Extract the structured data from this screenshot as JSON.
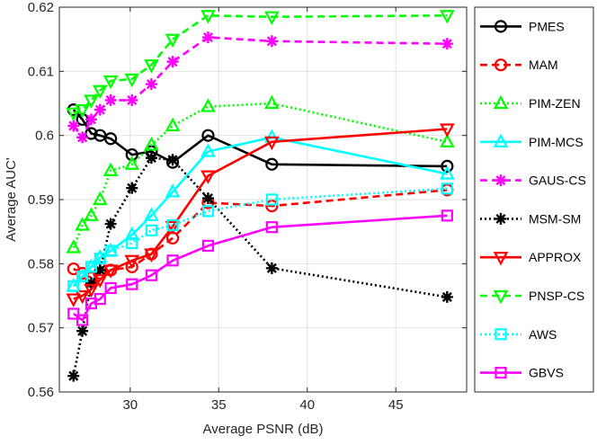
{
  "chart_data": {
    "type": "line",
    "title": "",
    "xlabel": "Average PSNR (dB)",
    "ylabel": "Average AUC'",
    "xlim": [
      26,
      49
    ],
    "ylim": [
      0.56,
      0.62
    ],
    "xticks": [
      30,
      35,
      40,
      45
    ],
    "yticks": [
      0.56,
      0.57,
      0.58,
      0.59,
      0.6,
      0.61,
      0.62
    ],
    "xtick_labels": [
      "30",
      "35",
      "40",
      "45"
    ],
    "ytick_labels": [
      "0.56",
      "0.57",
      "0.58",
      "0.59",
      "0.6",
      "0.61",
      "0.62"
    ],
    "grid": true,
    "legend_position": "right",
    "x": [
      26.8,
      27.3,
      27.8,
      28.3,
      28.9,
      30.1,
      31.2,
      32.4,
      34.4,
      38.0,
      47.9
    ],
    "series": [
      {
        "name": "PMES",
        "color": "#000000",
        "dash": "solid",
        "marker": "circle",
        "values": [
          0.604,
          0.6025,
          0.6003,
          0.6,
          0.5995,
          0.597,
          0.5975,
          0.5958,
          0.6,
          0.5955,
          0.5952
        ]
      },
      {
        "name": "MAM",
        "color": "#ff0000",
        "dash": "dashed",
        "marker": "circle",
        "values": [
          0.5792,
          0.5785,
          0.5778,
          0.5785,
          0.579,
          0.5795,
          0.5815,
          0.584,
          0.5895,
          0.589,
          0.5915
        ]
      },
      {
        "name": "PIM-ZEN",
        "color": "#00ff00",
        "dash": "dotted",
        "marker": "triangle-up",
        "values": [
          0.5825,
          0.586,
          0.5875,
          0.59,
          0.5945,
          0.5955,
          0.5985,
          0.6015,
          0.6045,
          0.605,
          0.599
        ]
      },
      {
        "name": "PIM-MCS",
        "color": "#00ffff",
        "dash": "solid",
        "marker": "triangle-up",
        "values": [
          0.5765,
          0.578,
          0.5795,
          0.581,
          0.582,
          0.5845,
          0.5875,
          0.5912,
          0.5975,
          0.5997,
          0.594
        ]
      },
      {
        "name": "GAUS-CS",
        "color": "#ff00ff",
        "dash": "dashed",
        "marker": "asterisk",
        "values": [
          0.6015,
          0.5997,
          0.6025,
          0.604,
          0.6055,
          0.6055,
          0.608,
          0.6115,
          0.6153,
          0.6147,
          0.6143
        ]
      },
      {
        "name": "MSM-SM",
        "color": "#000000",
        "dash": "dotted",
        "marker": "asterisk",
        "values": [
          0.5625,
          0.5695,
          0.577,
          0.579,
          0.5862,
          0.5918,
          0.5965,
          0.5962,
          0.5902,
          0.5793,
          0.5748
        ]
      },
      {
        "name": "APPROX",
        "color": "#ff0000",
        "dash": "solid",
        "marker": "triangle-down",
        "values": [
          0.5745,
          0.575,
          0.576,
          0.5775,
          0.579,
          0.5805,
          0.5815,
          0.5858,
          0.5937,
          0.599,
          0.601
        ]
      },
      {
        "name": "PNSP-CS",
        "color": "#00ff00",
        "dash": "dashed",
        "marker": "triangle-down",
        "values": [
          0.6035,
          0.604,
          0.6055,
          0.607,
          0.6085,
          0.6088,
          0.611,
          0.615,
          0.6187,
          0.6185,
          0.6187
        ]
      },
      {
        "name": "AWS",
        "color": "#00ffff",
        "dash": "dotted",
        "marker": "square",
        "values": [
          0.5765,
          0.578,
          0.5795,
          0.5808,
          0.582,
          0.5832,
          0.5852,
          0.586,
          0.5882,
          0.59,
          0.5917
        ]
      },
      {
        "name": "GBVS",
        "color": "#ff00ff",
        "dash": "solid",
        "marker": "square",
        "values": [
          0.5722,
          0.5712,
          0.5738,
          0.5745,
          0.5762,
          0.5768,
          0.5782,
          0.5805,
          0.5828,
          0.5857,
          0.5875
        ]
      }
    ]
  }
}
